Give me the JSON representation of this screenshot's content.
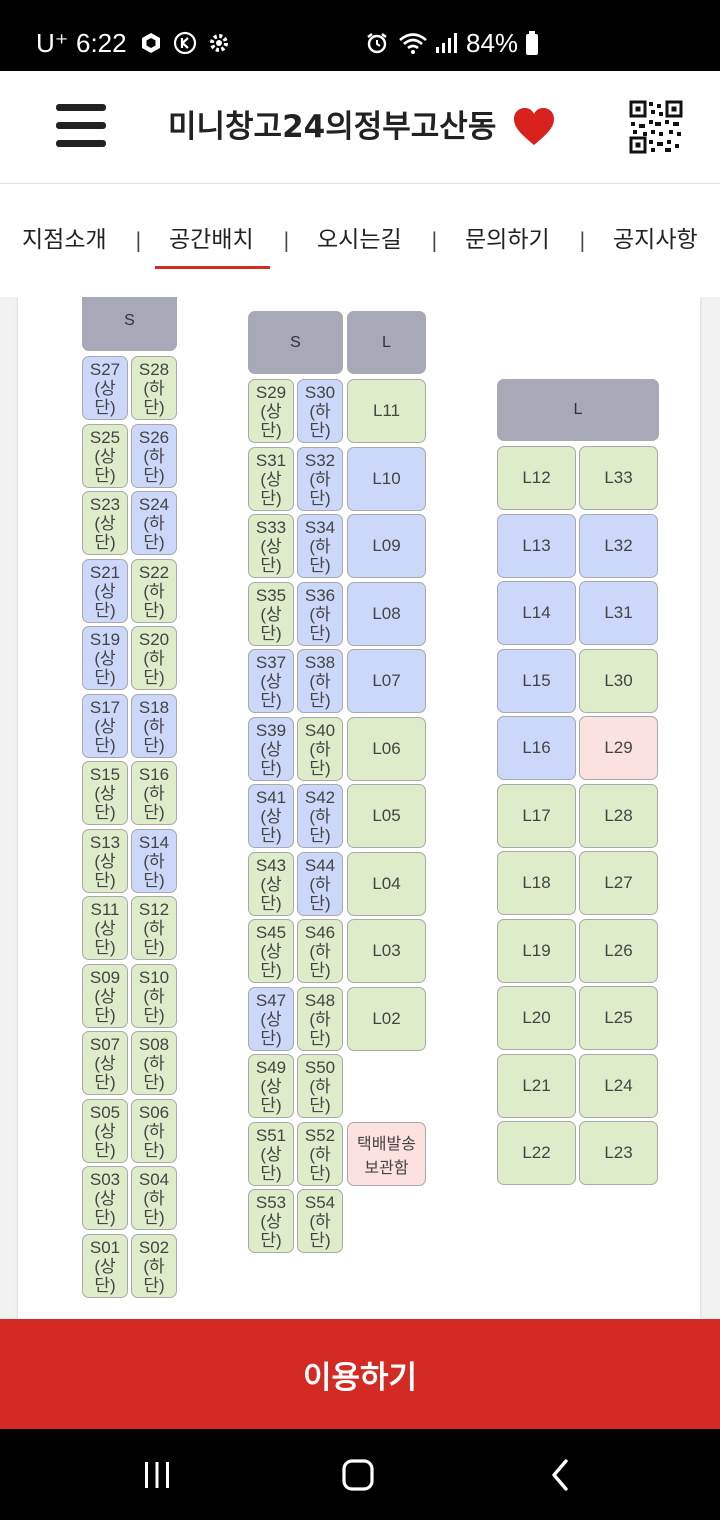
{
  "status_bar": {
    "carrier": "U⁺",
    "time": "6:22",
    "battery": "84%",
    "icons": [
      "cube-icon",
      "k-app-icon",
      "settings-icon",
      "alarm-icon",
      "wifi-icon",
      "signal-icon",
      "battery-icon"
    ]
  },
  "header": {
    "title": "미니창고24의정부고산동",
    "menu_icon": "hamburger-icon",
    "heart_icon": "heart-icon",
    "qr_icon": "qr-code-icon",
    "accent": "#d32b26"
  },
  "nav": {
    "items": [
      "지점소개",
      "공간배치",
      "오시는길",
      "문의하기",
      "공지사항"
    ],
    "separator": "|",
    "active_index": 1
  },
  "map": {
    "colors": {
      "available": "#deecc9",
      "occupied": "#ccd8fa",
      "special": "#fbe1df",
      "header": "#a7a9b8"
    },
    "headers": [
      "S",
      "S",
      "L",
      "L"
    ],
    "col1": [
      [
        "S27",
        "(상",
        "단)",
        "blue"
      ],
      [
        "S28",
        "(하",
        "단)",
        "green"
      ],
      [
        "S25",
        "(상",
        "단)",
        "green"
      ],
      [
        "S26",
        "(하",
        "단)",
        "blue"
      ],
      [
        "S23",
        "(상",
        "단)",
        "green"
      ],
      [
        "S24",
        "(하",
        "단)",
        "blue"
      ],
      [
        "S21",
        "(상",
        "단)",
        "blue"
      ],
      [
        "S22",
        "(하",
        "단)",
        "green"
      ],
      [
        "S19",
        "(상",
        "단)",
        "blue"
      ],
      [
        "S20",
        "(하",
        "단)",
        "green"
      ],
      [
        "S17",
        "(상",
        "단)",
        "blue"
      ],
      [
        "S18",
        "(하",
        "단)",
        "blue"
      ],
      [
        "S15",
        "(상",
        "단)",
        "green"
      ],
      [
        "S16",
        "(하",
        "단)",
        "green"
      ],
      [
        "S13",
        "(상",
        "단)",
        "green"
      ],
      [
        "S14",
        "(하",
        "단)",
        "blue"
      ],
      [
        "S11",
        "(상",
        "단)",
        "green"
      ],
      [
        "S12",
        "(하",
        "단)",
        "green"
      ],
      [
        "S09",
        "(상",
        "단)",
        "green"
      ],
      [
        "S10",
        "(하",
        "단)",
        "green"
      ],
      [
        "S07",
        "(상",
        "단)",
        "green"
      ],
      [
        "S08",
        "(하",
        "단)",
        "green"
      ],
      [
        "S05",
        "(상",
        "단)",
        "green"
      ],
      [
        "S06",
        "(하",
        "단)",
        "green"
      ],
      [
        "S03",
        "(상",
        "단)",
        "green"
      ],
      [
        "S04",
        "(하",
        "단)",
        "green"
      ],
      [
        "S01",
        "(상",
        "단)",
        "green"
      ],
      [
        "S02",
        "(하",
        "단)",
        "green"
      ]
    ],
    "col2": [
      [
        "S29",
        "(상",
        "단)",
        "green"
      ],
      [
        "S30",
        "(하",
        "단)",
        "blue"
      ],
      [
        "L11",
        "green"
      ],
      [
        "S31",
        "(상",
        "단)",
        "green"
      ],
      [
        "S32",
        "(하",
        "단)",
        "blue"
      ],
      [
        "L10",
        "blue"
      ],
      [
        "S33",
        "(상",
        "단)",
        "green"
      ],
      [
        "S34",
        "(하",
        "단)",
        "blue"
      ],
      [
        "L09",
        "blue"
      ],
      [
        "S35",
        "(상",
        "단)",
        "green"
      ],
      [
        "S36",
        "(하",
        "단)",
        "blue"
      ],
      [
        "L08",
        "blue"
      ],
      [
        "S37",
        "(상",
        "단)",
        "blue"
      ],
      [
        "S38",
        "(하",
        "단)",
        "blue"
      ],
      [
        "L07",
        "blue"
      ],
      [
        "S39",
        "(상",
        "단)",
        "blue"
      ],
      [
        "S40",
        "(하",
        "단)",
        "green"
      ],
      [
        "L06",
        "green"
      ],
      [
        "S41",
        "(상",
        "단)",
        "blue"
      ],
      [
        "S42",
        "(하",
        "단)",
        "blue"
      ],
      [
        "L05",
        "green"
      ],
      [
        "S43",
        "(상",
        "단)",
        "green"
      ],
      [
        "S44",
        "(하",
        "단)",
        "blue"
      ],
      [
        "L04",
        "green"
      ],
      [
        "S45",
        "(상",
        "단)",
        "green"
      ],
      [
        "S46",
        "(하",
        "단)",
        "green"
      ],
      [
        "L03",
        "green"
      ],
      [
        "S47",
        "(상",
        "단)",
        "blue"
      ],
      [
        "S48",
        "(하",
        "단)",
        "green"
      ],
      [
        "L02",
        "green"
      ],
      [
        "S49",
        "(상",
        "단)",
        "green"
      ],
      [
        "S50",
        "(하",
        "단)",
        "green"
      ],
      [
        "S51",
        "(상",
        "단)",
        "green"
      ],
      [
        "S52",
        "(하",
        "단)",
        "green"
      ],
      [
        "S53",
        "(상",
        "단)",
        "green"
      ],
      [
        "S54",
        "(하",
        "단)",
        "green"
      ]
    ],
    "delivery_box": [
      "택배발송",
      "보관함"
    ],
    "col3": [
      [
        "L12",
        "green"
      ],
      [
        "L33",
        "green"
      ],
      [
        "L13",
        "blue"
      ],
      [
        "L32",
        "blue"
      ],
      [
        "L14",
        "blue"
      ],
      [
        "L31",
        "blue"
      ],
      [
        "L15",
        "blue"
      ],
      [
        "L30",
        "green"
      ],
      [
        "L16",
        "blue"
      ],
      [
        "L29",
        "pink"
      ],
      [
        "L17",
        "green"
      ],
      [
        "L28",
        "green"
      ],
      [
        "L18",
        "green"
      ],
      [
        "L27",
        "green"
      ],
      [
        "L19",
        "green"
      ],
      [
        "L26",
        "green"
      ],
      [
        "L20",
        "green"
      ],
      [
        "L25",
        "green"
      ],
      [
        "L21",
        "green"
      ],
      [
        "L24",
        "green"
      ],
      [
        "L22",
        "green"
      ],
      [
        "L23",
        "green"
      ]
    ]
  },
  "cta": {
    "label": "이용하기",
    "color": "#d42a24"
  },
  "system_nav": {
    "icons": [
      "recent-apps-icon",
      "home-icon",
      "back-icon"
    ]
  }
}
